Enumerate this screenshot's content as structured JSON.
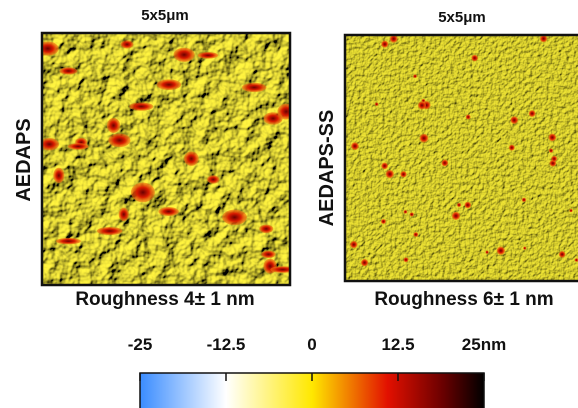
{
  "panels": [
    {
      "scale": "5x5μm",
      "label": "AEDAPS",
      "roughness": "Roughness 4± 1 nm"
    },
    {
      "scale": "5x5μm",
      "label": "AEDAPS-SS",
      "roughness": "Roughness 6± 1 nm"
    }
  ],
  "colorbar": {
    "lim": [
      -25,
      25
    ],
    "ticks": [
      -25,
      -12.5,
      0,
      12.5,
      {
        "value": 25,
        "label": "25nm"
      }
    ]
  }
}
